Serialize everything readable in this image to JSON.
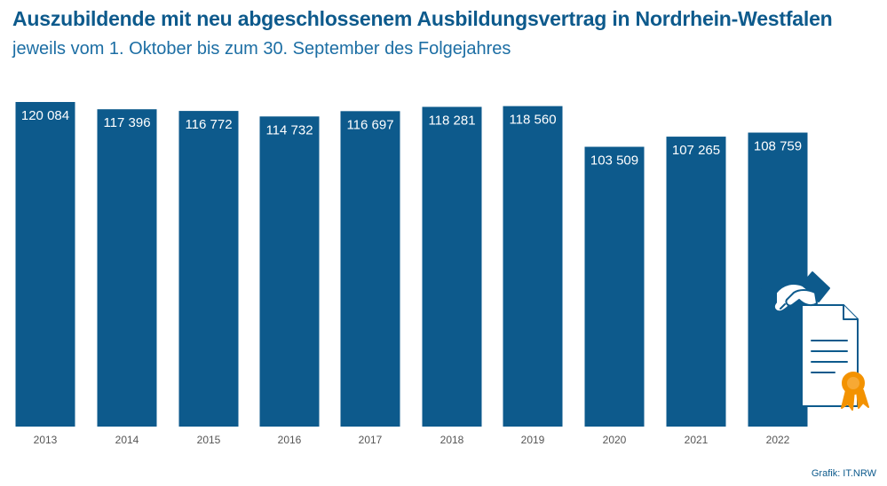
{
  "header": {
    "title": "Auszubildende mit neu abgeschlossenem Ausbildungsvertrag in Nordrhein-Westfalen",
    "subtitle": "jeweils vom 1. Oktober bis zum 30. September des Folgejahres"
  },
  "source": "Grafik: IT.NRW",
  "colors": {
    "bar": "#0d5a8c",
    "accent": "#f39200"
  },
  "chart_data": {
    "type": "bar",
    "title": "Auszubildende mit neu abgeschlossenem Ausbildungsvertrag in Nordrhein-Westfalen",
    "subtitle": "jeweils vom 1. Oktober bis zum 30. September des Folgejahres",
    "categories": [
      "2013",
      "2014",
      "2015",
      "2016",
      "2017",
      "2018",
      "2019",
      "2020",
      "2021",
      "2022"
    ],
    "values": [
      120084,
      117396,
      116772,
      114732,
      116697,
      118281,
      118560,
      103509,
      107265,
      108759
    ],
    "value_labels": [
      "120 084",
      "117 396",
      "116 772",
      "114 732",
      "116 697",
      "118 281",
      "118 560",
      "103 509",
      "107 265",
      "108 759"
    ],
    "xlabel": "",
    "ylabel": "",
    "grid": false,
    "legend": "none"
  },
  "decoration": {
    "icon": "handshake-certificate-icon"
  }
}
